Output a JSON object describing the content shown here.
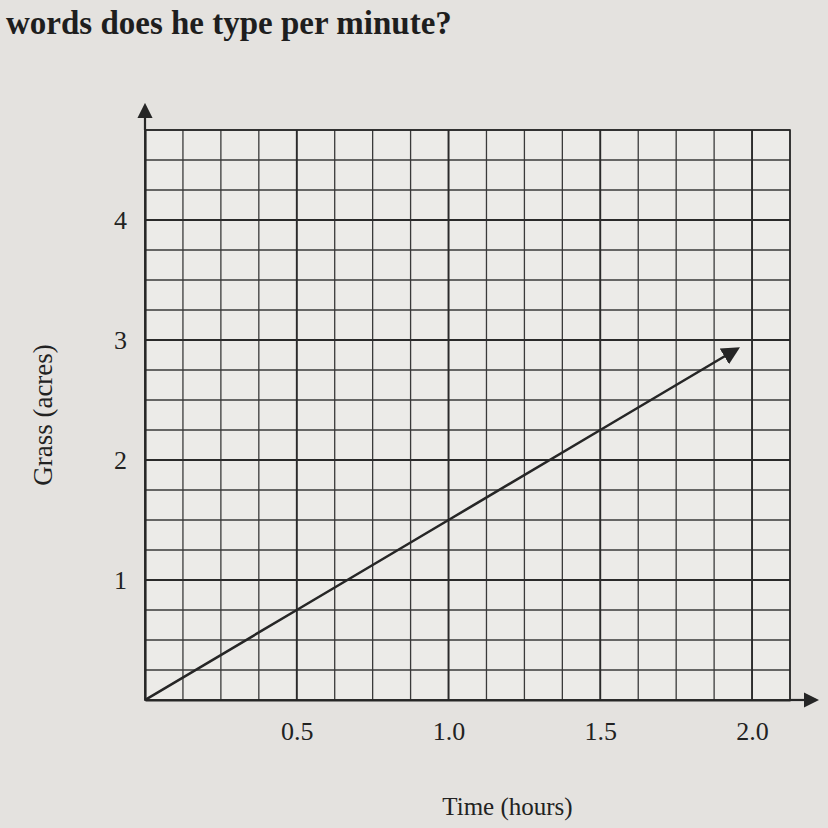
{
  "chart_data": {
    "type": "line",
    "annotations": [
      "words does he type per minute?"
    ],
    "x_label": "Time (hours)",
    "y_label": "Grass (acres)",
    "x": [
      0,
      0.5,
      1.0,
      1.5,
      1.95
    ],
    "values": [
      0,
      0.75,
      1.5,
      2.25,
      2.925
    ],
    "color": "#262626",
    "xlim": [
      0,
      2.125
    ],
    "ylim": [
      0,
      4.75
    ],
    "xticks": [
      0.5,
      {
        "value": 1.0,
        "label": "1.0"
      },
      1.5,
      {
        "value": 2.0,
        "label": "2.0"
      }
    ],
    "yticks": [
      1,
      2,
      3,
      4
    ],
    "grid": true
  }
}
